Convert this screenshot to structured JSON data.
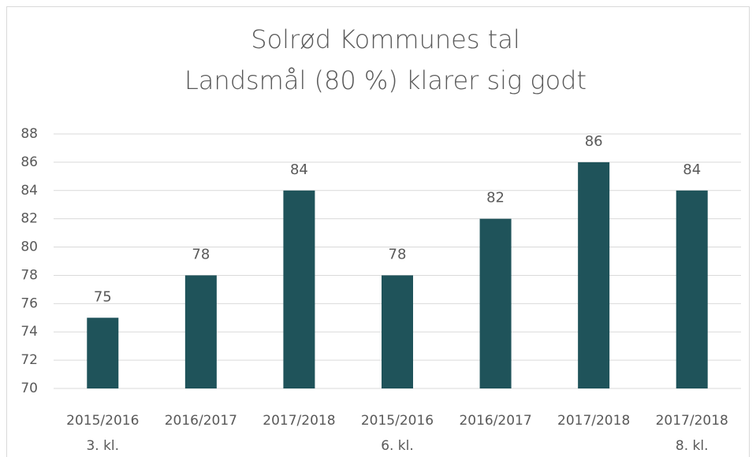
{
  "chart_data": {
    "type": "bar",
    "title": "Solrød Kommunes tal",
    "subtitle": "Landsmål (80 %) klarer sig godt",
    "categories": [
      "2015/2016",
      "2016/2017",
      "2017/2018",
      "2015/2016",
      "2016/2017",
      "2017/2018",
      "2017/2018"
    ],
    "category_groups": [
      "3. kl.",
      null,
      null,
      "6. kl.",
      null,
      null,
      "8. kl."
    ],
    "values": [
      75,
      78,
      84,
      78,
      82,
      86,
      84
    ],
    "color": "#1f535a",
    "ylim": [
      70,
      88
    ],
    "yticks": [
      70,
      72,
      74,
      76,
      78,
      80,
      82,
      84,
      86,
      88
    ],
    "grid": true
  }
}
